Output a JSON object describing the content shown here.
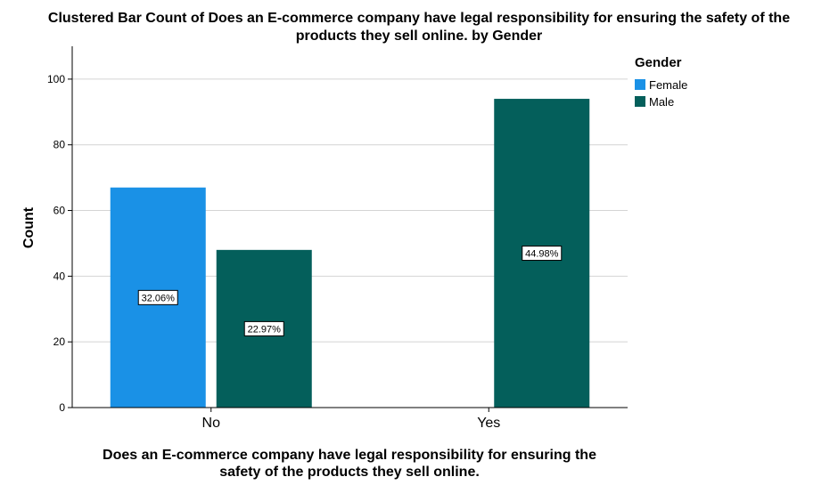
{
  "chart_data": {
    "type": "bar",
    "title_lines": [
      "Clustered Bar Count of Does an E-commerce company have legal responsibility for ensuring the safety of the",
      "products they sell online. by Gender"
    ],
    "xlabel_lines": [
      "Does an E-commerce company have legal responsibility for ensuring the",
      "safety of the products they sell online."
    ],
    "ylabel": "Count",
    "ylim": [
      0,
      110
    ],
    "yticks": [
      0,
      20,
      40,
      60,
      80,
      100
    ],
    "grid": true,
    "legend_title": "Gender",
    "legend_position": "top-right",
    "categories": [
      "No",
      "Yes"
    ],
    "series": [
      {
        "name": "Female",
        "color": "#1a91e6",
        "values": [
          67,
          null
        ],
        "labels": [
          "32.06%",
          null
        ]
      },
      {
        "name": "Male",
        "color": "#045f5b",
        "values": [
          48,
          94
        ],
        "labels": [
          "22.97%",
          "44.98%"
        ]
      }
    ]
  }
}
